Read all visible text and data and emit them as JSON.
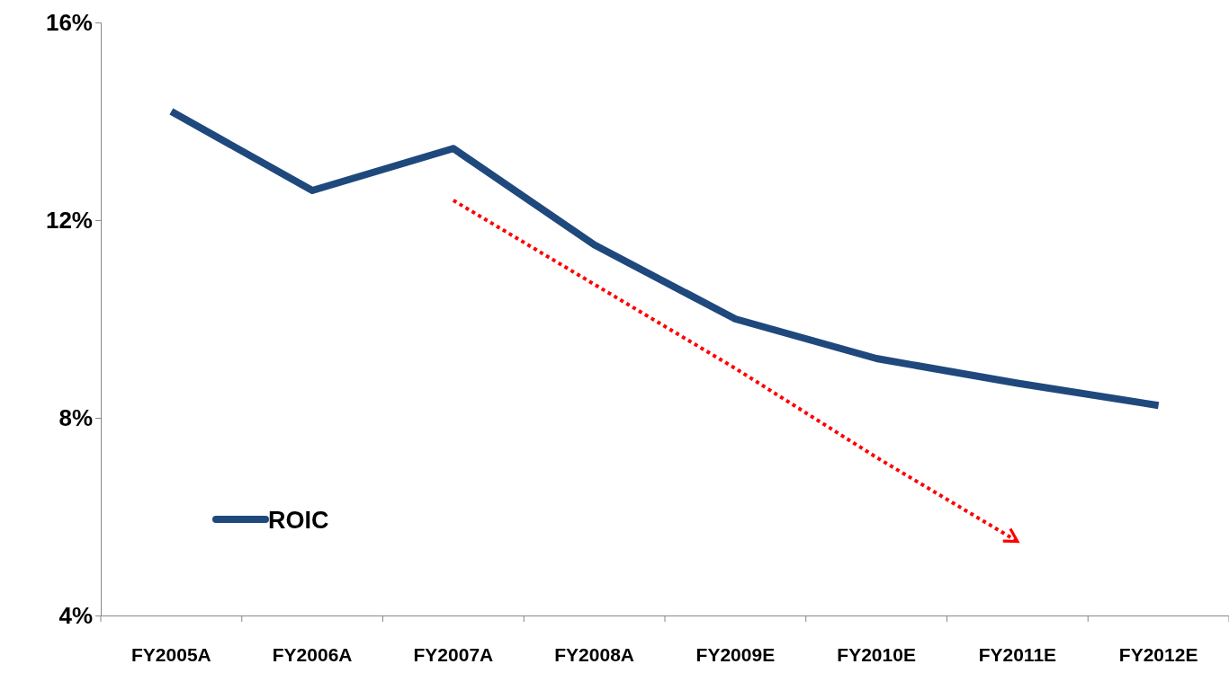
{
  "chart_data": {
    "type": "line",
    "categories": [
      "FY2005A",
      "FY2006A",
      "FY2007A",
      "FY2008A",
      "FY2009E",
      "FY2010E",
      "FY2011E",
      "FY2012E"
    ],
    "series": [
      {
        "name": "ROIC",
        "color": "#1f497d",
        "values": [
          14.2,
          12.6,
          13.45,
          11.5,
          10.0,
          9.2,
          8.7,
          8.25
        ]
      },
      {
        "type": "line",
        "color": "#ff0000",
        "line_style": "dotted",
        "values": [
          null,
          null,
          12.4,
          10.7,
          9.0,
          7.2,
          5.5,
          null
        ]
      }
    ],
    "ylim": [
      4,
      16
    ],
    "yticks": [
      {
        "value": 4,
        "label": "4%"
      },
      {
        "value": 8,
        "label": "8%"
      },
      {
        "value": 12,
        "label": "12%"
      },
      {
        "value": 16,
        "label": "16%"
      }
    ],
    "grid": false,
    "legend": "bottom left",
    "marker": "none",
    "line_style": "solid"
  }
}
